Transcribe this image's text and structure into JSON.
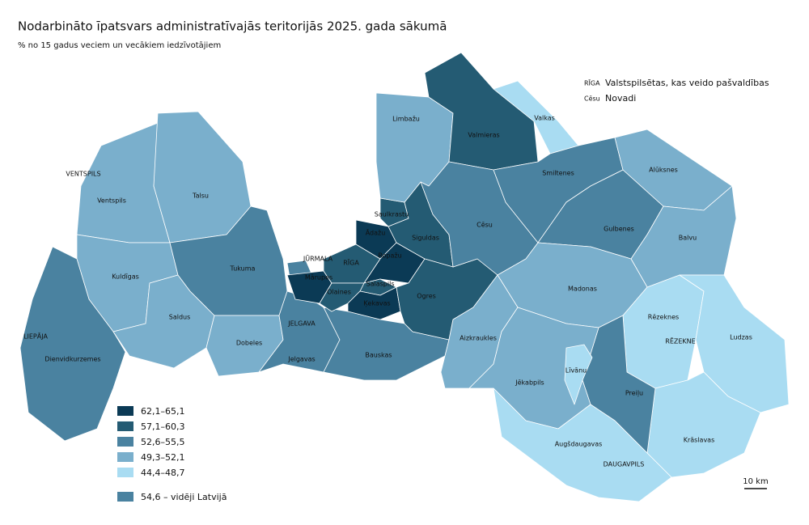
{
  "header": {
    "title": "Nodarbināto īpatsvars administratīvajās teritorijās 2025. gada sākumā",
    "subtitle": "% no 15 gadus veciem un vecākiem iedzīvotājiem"
  },
  "key": [
    {
      "sample": "RĪGA",
      "text": "Valstspilsētas, kas veido pašvaldības"
    },
    {
      "sample": "Cēsu",
      "text": "Novadi"
    }
  ],
  "legend": {
    "classes": [
      {
        "label": "62,1–65,1",
        "color": "#0b3a55"
      },
      {
        "label": "57,1–60,3",
        "color": "#245b73"
      },
      {
        "label": "52,6–55,5",
        "color": "#4a82a0"
      },
      {
        "label": "49,3–52,1",
        "color": "#7aafcc"
      },
      {
        "label": "44,4–48,7",
        "color": "#a9dcf2"
      }
    ],
    "average": {
      "label": "54,6 – vidēji Latvijā",
      "color": "#4a82a0"
    }
  },
  "regions": [
    {
      "name": "Ventspils",
      "color": "#7aafcc"
    },
    {
      "name": "Talsu",
      "color": "#7aafcc"
    },
    {
      "name": "Kuldīgas",
      "color": "#7aafcc"
    },
    {
      "name": "Dienvidkurzemes",
      "color": "#4a82a0"
    },
    {
      "name": "Saldus",
      "color": "#7aafcc"
    },
    {
      "name": "Tukuma",
      "color": "#4a82a0"
    },
    {
      "name": "Dobeles",
      "color": "#7aafcc"
    },
    {
      "name": "Jelgavas",
      "color": "#4a82a0"
    },
    {
      "name": "Bauskas",
      "color": "#4a82a0"
    },
    {
      "name": "JŪRMALA",
      "color": "#4a82a0"
    },
    {
      "name": "Mārupes",
      "color": "#0b3a55"
    },
    {
      "name": "RĪGA",
      "color": "#245b73"
    },
    {
      "name": "Ādažu",
      "color": "#0b3a55"
    },
    {
      "name": "Saulkrastu",
      "color": "#245b73"
    },
    {
      "name": "Ropažu",
      "color": "#0b3a55"
    },
    {
      "name": "Salaspils",
      "color": "#245b73"
    },
    {
      "name": "Olaines",
      "color": "#245b73"
    },
    {
      "name": "Ķekavas",
      "color": "#0b3a55"
    },
    {
      "name": "Siguldas",
      "color": "#245b73"
    },
    {
      "name": "Ogres",
      "color": "#245b73"
    },
    {
      "name": "Limbažu",
      "color": "#7aafcc"
    },
    {
      "name": "Valmieras",
      "color": "#245b73"
    },
    {
      "name": "Cēsu",
      "color": "#4a82a0"
    },
    {
      "name": "Valkas",
      "color": "#a9dcf2"
    },
    {
      "name": "Smiltenes",
      "color": "#4a82a0"
    },
    {
      "name": "Alūksnes",
      "color": "#7aafcc"
    },
    {
      "name": "Gulbenes",
      "color": "#4a82a0"
    },
    {
      "name": "Balvu",
      "color": "#7aafcc"
    },
    {
      "name": "Madonas",
      "color": "#7aafcc"
    },
    {
      "name": "Aizkraukles",
      "color": "#7aafcc"
    },
    {
      "name": "Rēzeknes",
      "color": "#a9dcf2"
    },
    {
      "name": "Ludzas",
      "color": "#a9dcf2"
    },
    {
      "name": "Krāslavas",
      "color": "#a9dcf2"
    },
    {
      "name": "Preiļu",
      "color": "#4a82a0"
    },
    {
      "name": "Jēkabpils",
      "color": "#7aafcc"
    },
    {
      "name": "Līvānu",
      "color": "#a9dcf2"
    },
    {
      "name": "Augšdaugavas",
      "color": "#a9dcf2"
    }
  ],
  "cities": [
    "VENTSPILS",
    "LIEPĀJA",
    "JELGAVA",
    "RĒZEKNE",
    "DAUGAVPILS"
  ],
  "scale": "10 km"
}
